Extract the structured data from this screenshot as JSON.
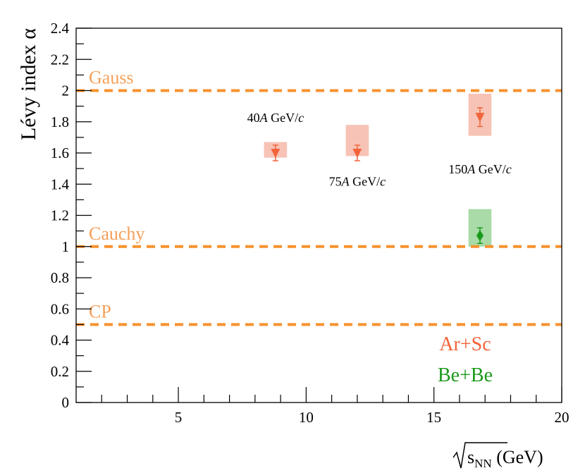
{
  "chart_data": {
    "type": "scatter",
    "title": "",
    "xlabel": {
      "prefix": "s",
      "subscript": "NN",
      "suffix": " (GeV)"
    },
    "ylabel": "Lévy index α",
    "xlim": [
      1,
      20
    ],
    "ylim": [
      0,
      2.4
    ],
    "x_ticks": [
      5,
      10,
      15,
      20
    ],
    "x_tick_labels": [
      "5",
      "10",
      "15",
      "20"
    ],
    "y_ticks": [
      0,
      0.2,
      0.4,
      0.6,
      0.8,
      1,
      1.2,
      1.4,
      1.6,
      1.8,
      2,
      2.2,
      2.4
    ],
    "y_tick_labels": [
      "0",
      "0.2",
      "0.4",
      "0.6",
      "0.8",
      "1",
      "1.2",
      "1.4",
      "1.6",
      "1.8",
      "2",
      "2.2",
      "2.4"
    ],
    "reference_lines": [
      {
        "name": "Gauss",
        "y": 2.0
      },
      {
        "name": "Cauchy",
        "y": 1.0
      },
      {
        "name": "CP",
        "y": 0.5
      }
    ],
    "series": [
      {
        "name": "Ar+Sc",
        "color": "#f2643a",
        "syst_color": "#f7c3b6",
        "marker": "triangle-down",
        "points": [
          {
            "x": 8.8,
            "y": 1.6,
            "stat_err": 0.05,
            "syst_low": 0.03,
            "syst_high": 0.07
          },
          {
            "x": 12.0,
            "y": 1.6,
            "stat_err": 0.05,
            "syst_low": 0.02,
            "syst_high": 0.18
          },
          {
            "x": 16.8,
            "y": 1.83,
            "stat_err": 0.06,
            "syst_low": 0.12,
            "syst_high": 0.15
          }
        ]
      },
      {
        "name": "Be+Be",
        "color": "#1a9a1a",
        "syst_color": "#a8dba8",
        "marker": "diamond",
        "points": [
          {
            "x": 16.8,
            "y": 1.07,
            "stat_err": 0.05,
            "syst_low": 0.07,
            "syst_high": 0.17
          }
        ]
      }
    ],
    "energy_annotations": [
      {
        "number": "40",
        "italic": "A",
        "unit": " GeV/",
        "unit_italic": "c",
        "x": 8.8,
        "y": 1.8
      },
      {
        "number": "75",
        "italic": "A",
        "unit": " GeV/",
        "unit_italic": "c",
        "x": 12.0,
        "y": 1.39
      },
      {
        "number": "150",
        "italic": "A",
        "unit": " GeV/",
        "unit_italic": "c",
        "x": 16.8,
        "y": 1.47
      }
    ],
    "legend": {
      "placement": "bottom-right",
      "entries": [
        {
          "label": "Ar+Sc",
          "color": "#f2643a"
        },
        {
          "label": "Be+Be",
          "color": "#1a9a1a"
        }
      ]
    },
    "ref_line_color": "#f7922e",
    "ref_label_color": "#f5a05a"
  }
}
